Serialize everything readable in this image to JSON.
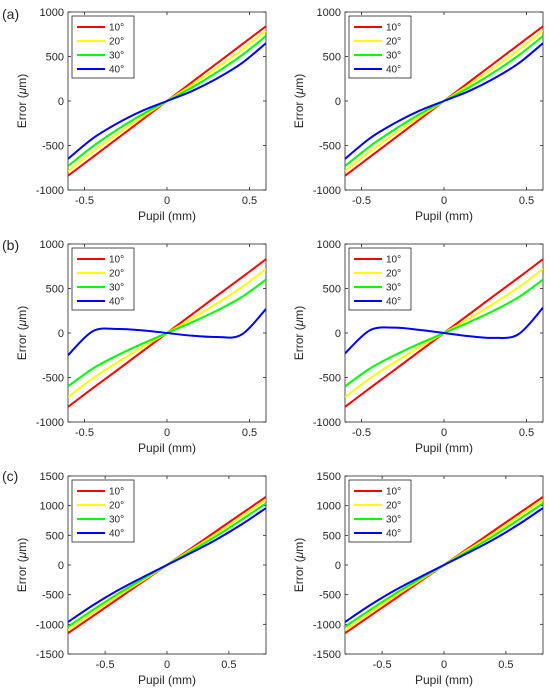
{
  "figure": {
    "panel_labels": [
      "(a)",
      "(b)",
      "(c)"
    ]
  },
  "chart_data": [
    {
      "type": "line",
      "row": 0,
      "col": 0,
      "xlabel": "Pupil (mm)",
      "ylabel_prefix": "Error (",
      "ylabel_mu": "μ",
      "ylabel_suffix": "m)",
      "xlim": [
        -0.6,
        0.6
      ],
      "ylim": [
        -1000,
        1000
      ],
      "xticks": [
        -0.5,
        0,
        0.5
      ],
      "xtick_labels": [
        "-0.5",
        "0",
        "0.5"
      ],
      "yticks": [
        -1000,
        -500,
        0,
        500,
        1000
      ],
      "ytick_labels": [
        "-1000",
        "-500",
        "0",
        "500",
        "1000"
      ],
      "x": [
        -0.6,
        -0.45,
        -0.3,
        -0.15,
        0,
        0.15,
        0.3,
        0.45,
        0.6
      ],
      "series": [
        {
          "name": "10°",
          "color": "#ff0000",
          "values": [
            -840,
            -630,
            -420,
            -210,
            0,
            210,
            420,
            630,
            840
          ]
        },
        {
          "name": "20°",
          "color": "#ffff00",
          "values": [
            -790,
            -570,
            -370,
            -180,
            0,
            180,
            370,
            570,
            790
          ]
        },
        {
          "name": "30°",
          "color": "#00ff00",
          "values": [
            -730,
            -510,
            -320,
            -150,
            0,
            150,
            320,
            510,
            730
          ]
        },
        {
          "name": "40°",
          "color": "#0000ff",
          "values": [
            -650,
            -420,
            -250,
            -110,
            0,
            110,
            250,
            420,
            650
          ]
        }
      ],
      "legend": "top-left",
      "grid": false
    },
    {
      "type": "line",
      "row": 0,
      "col": 1,
      "xlabel": "Pupil (mm)",
      "ylabel_prefix": "Error (",
      "ylabel_mu": "μ",
      "ylabel_suffix": "m)",
      "xlim": [
        -0.6,
        0.6
      ],
      "ylim": [
        -1000,
        1000
      ],
      "xticks": [
        -0.5,
        0,
        0.5
      ],
      "xtick_labels": [
        "-0.5",
        "0",
        "0.5"
      ],
      "yticks": [
        -1000,
        -500,
        0,
        500,
        1000
      ],
      "ytick_labels": [
        "-1000",
        "-500",
        "0",
        "500",
        "1000"
      ],
      "x": [
        -0.6,
        -0.45,
        -0.3,
        -0.15,
        0,
        0.15,
        0.3,
        0.45,
        0.6
      ],
      "series": [
        {
          "name": "10°",
          "color": "#ff0000",
          "values": [
            -840,
            -630,
            -420,
            -210,
            0,
            210,
            420,
            630,
            840
          ]
        },
        {
          "name": "20°",
          "color": "#ffff00",
          "values": [
            -790,
            -570,
            -370,
            -180,
            0,
            180,
            370,
            570,
            790
          ]
        },
        {
          "name": "30°",
          "color": "#00ff00",
          "values": [
            -730,
            -510,
            -320,
            -150,
            0,
            150,
            320,
            510,
            730
          ]
        },
        {
          "name": "40°",
          "color": "#0000ff",
          "values": [
            -650,
            -420,
            -250,
            -110,
            0,
            110,
            250,
            420,
            650
          ]
        }
      ],
      "legend": "top-left",
      "grid": false
    },
    {
      "type": "line",
      "row": 1,
      "col": 0,
      "xlabel": "Pupil (mm)",
      "ylabel_prefix": "Error (",
      "ylabel_mu": "μ",
      "ylabel_suffix": "m)",
      "xlim": [
        -0.6,
        0.6
      ],
      "ylim": [
        -1000,
        1000
      ],
      "xticks": [
        -0.5,
        0,
        0.5
      ],
      "xtick_labels": [
        "-0.5",
        "0",
        "0.5"
      ],
      "yticks": [
        -1000,
        -500,
        0,
        500,
        1000
      ],
      "ytick_labels": [
        "-1000",
        "-500",
        "0",
        "500",
        "1000"
      ],
      "x": [
        -0.6,
        -0.45,
        -0.3,
        -0.15,
        0,
        0.15,
        0.3,
        0.45,
        0.6
      ],
      "series": [
        {
          "name": "10°",
          "color": "#ff0000",
          "values": [
            -830,
            -620,
            -415,
            -207,
            0,
            207,
            415,
            620,
            830
          ]
        },
        {
          "name": "20°",
          "color": "#ffff00",
          "values": [
            -720,
            -510,
            -330,
            -160,
            0,
            160,
            330,
            510,
            720
          ]
        },
        {
          "name": "30°",
          "color": "#00ff00",
          "values": [
            -600,
            -400,
            -250,
            -120,
            0,
            120,
            250,
            400,
            600
          ]
        },
        {
          "name": "40°",
          "color": "#0000ff",
          "values": [
            -250,
            20,
            45,
            30,
            0,
            -30,
            -45,
            -20,
            270
          ]
        }
      ],
      "legend": "top-left",
      "grid": false
    },
    {
      "type": "line",
      "row": 1,
      "col": 1,
      "xlabel": "Pupil (mm)",
      "ylabel_prefix": "Error (",
      "ylabel_mu": "μ",
      "ylabel_suffix": "m)",
      "xlim": [
        -0.6,
        0.6
      ],
      "ylim": [
        -1000,
        1000
      ],
      "xticks": [
        -0.5,
        0,
        0.5
      ],
      "xtick_labels": [
        "-0.5",
        "0",
        "0.5"
      ],
      "yticks": [
        -1000,
        -500,
        0,
        500,
        1000
      ],
      "ytick_labels": [
        "-1000",
        "-500",
        "0",
        "500",
        "1000"
      ],
      "x": [
        -0.6,
        -0.45,
        -0.3,
        -0.15,
        0,
        0.15,
        0.3,
        0.45,
        0.6
      ],
      "series": [
        {
          "name": "10°",
          "color": "#ff0000",
          "values": [
            -830,
            -620,
            -415,
            -207,
            0,
            207,
            415,
            620,
            830
          ]
        },
        {
          "name": "20°",
          "color": "#ffff00",
          "values": [
            -720,
            -510,
            -330,
            -160,
            0,
            160,
            330,
            510,
            720
          ]
        },
        {
          "name": "30°",
          "color": "#00ff00",
          "values": [
            -600,
            -400,
            -250,
            -120,
            0,
            120,
            250,
            400,
            600
          ]
        },
        {
          "name": "40°",
          "color": "#0000ff",
          "values": [
            -230,
            30,
            60,
            35,
            0,
            -35,
            -55,
            -15,
            285
          ]
        }
      ],
      "legend": "top-left",
      "grid": false
    },
    {
      "type": "line",
      "row": 2,
      "col": 0,
      "xlabel": "Pupil (mm)",
      "ylabel_prefix": "Error (",
      "ylabel_mu": "μ",
      "ylabel_suffix": "m)",
      "xlim": [
        -0.8,
        0.8
      ],
      "ylim": [
        -1500,
        1500
      ],
      "xticks": [
        -0.5,
        0,
        0.5
      ],
      "xtick_labels": [
        "-0.5",
        "0",
        "0.5"
      ],
      "yticks": [
        -1500,
        -1000,
        -500,
        0,
        500,
        1000,
        1500
      ],
      "ytick_labels": [
        "-1500",
        "-1000",
        "-500",
        "0",
        "500",
        "1000",
        "1500"
      ],
      "x": [
        -0.8,
        -0.6,
        -0.4,
        -0.2,
        0,
        0.2,
        0.4,
        0.6,
        0.8
      ],
      "series": [
        {
          "name": "10°",
          "color": "#ff0000",
          "values": [
            -1150,
            -862,
            -575,
            -288,
            0,
            288,
            575,
            862,
            1150
          ]
        },
        {
          "name": "20°",
          "color": "#ffff00",
          "values": [
            -1100,
            -810,
            -530,
            -265,
            0,
            265,
            530,
            810,
            1100
          ]
        },
        {
          "name": "30°",
          "color": "#00ff00",
          "values": [
            -1040,
            -760,
            -490,
            -240,
            0,
            240,
            490,
            760,
            1040
          ]
        },
        {
          "name": "40°",
          "color": "#0000ff",
          "values": [
            -960,
            -680,
            -430,
            -210,
            0,
            210,
            430,
            680,
            960
          ]
        }
      ],
      "legend": "top-left",
      "grid": false
    },
    {
      "type": "line",
      "row": 2,
      "col": 1,
      "xlabel": "Pupil (mm)",
      "ylabel_prefix": "Error (",
      "ylabel_mu": "μ",
      "ylabel_suffix": "m)",
      "xlim": [
        -0.8,
        0.8
      ],
      "ylim": [
        -1500,
        1500
      ],
      "xticks": [
        -0.5,
        0,
        0.5
      ],
      "xtick_labels": [
        "-0.5",
        "0",
        "0.5"
      ],
      "yticks": [
        -1500,
        -1000,
        -500,
        0,
        500,
        1000,
        1500
      ],
      "ytick_labels": [
        "-1500",
        "-1000",
        "-500",
        "0",
        "500",
        "1000",
        "1500"
      ],
      "x": [
        -0.8,
        -0.6,
        -0.4,
        -0.2,
        0,
        0.2,
        0.4,
        0.6,
        0.8
      ],
      "series": [
        {
          "name": "10°",
          "color": "#ff0000",
          "values": [
            -1150,
            -862,
            -575,
            -288,
            0,
            288,
            575,
            862,
            1150
          ]
        },
        {
          "name": "20°",
          "color": "#ffff00",
          "values": [
            -1100,
            -810,
            -530,
            -265,
            0,
            265,
            530,
            810,
            1100
          ]
        },
        {
          "name": "30°",
          "color": "#00ff00",
          "values": [
            -1040,
            -760,
            -490,
            -240,
            0,
            240,
            490,
            760,
            1040
          ]
        },
        {
          "name": "40°",
          "color": "#0000ff",
          "values": [
            -960,
            -680,
            -430,
            -210,
            0,
            210,
            430,
            680,
            960
          ]
        }
      ],
      "legend": "top-left",
      "grid": false
    }
  ]
}
